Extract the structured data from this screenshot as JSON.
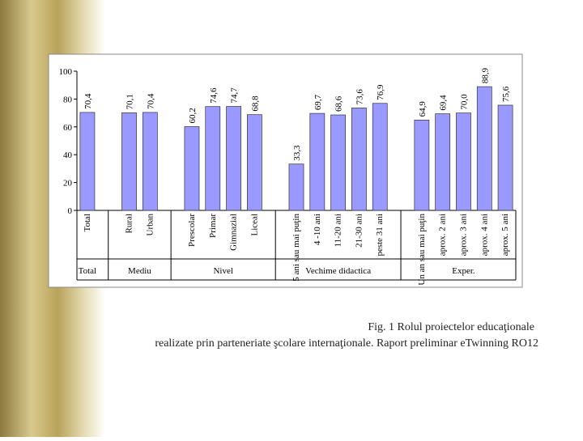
{
  "chart_data": {
    "type": "bar",
    "categories": [
      "Total",
      null,
      "Rural",
      "Urban",
      null,
      "Prescolar",
      "Primar",
      "Gimnazial",
      "Liceal",
      null,
      "5 ani sau mai puţin",
      "4 -10 ani",
      "11-20 ani",
      "21-30 ani",
      "peste 31 ani",
      null,
      "Un an sau mai puţin",
      "aprox. 2 ani",
      "aprox. 3 ani",
      "aprox. 4 ani",
      "aprox. 5 ani"
    ],
    "values": [
      70.4,
      null,
      70.1,
      70.4,
      null,
      60.2,
      74.6,
      74.7,
      68.8,
      null,
      33.3,
      69.7,
      68.6,
      73.6,
      76.9,
      null,
      64.9,
      69.4,
      70.0,
      88.9,
      75.6
    ],
    "value_labels": [
      "70,4",
      null,
      "70,1",
      "70,4",
      null,
      "60,2",
      "74,6",
      "74,7",
      "68,8",
      null,
      "33,3",
      "69,7",
      "68,6",
      "73,6",
      "76,9",
      null,
      "64,9",
      "69,4",
      "70,0",
      "88,9",
      "75,6"
    ],
    "groups": [
      "Total",
      "Mediu",
      "Nivel",
      "Vechime didactica",
      "Exper."
    ],
    "color": "#9999ff",
    "ylim": [
      0,
      100
    ],
    "yticks": [
      0,
      20,
      40,
      60,
      80,
      100
    ],
    "grid": false,
    "caption": [
      "Fig. 1 Rolul proiectelor educaţionale",
      "realizate prin parteneriate şcolare internaţionale. Raport   preliminar eTwinning RO12"
    ]
  }
}
